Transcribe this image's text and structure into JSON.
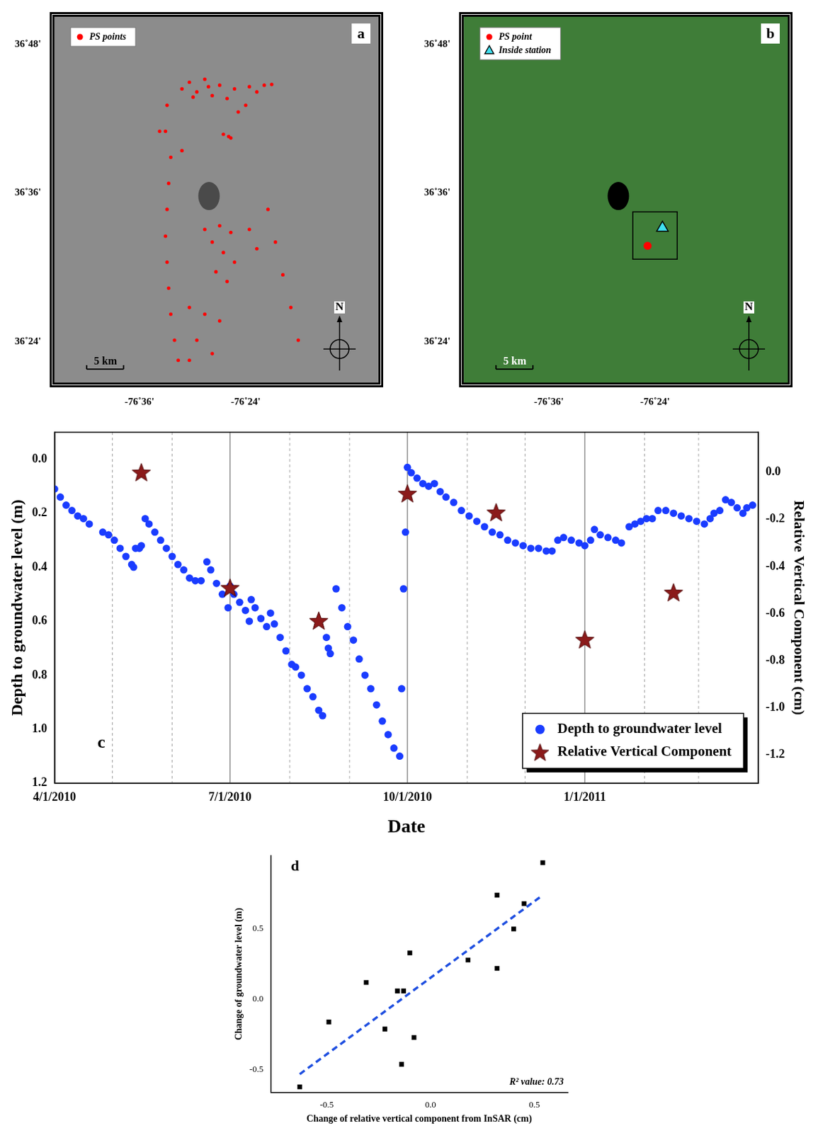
{
  "chart_data": [
    {
      "type": "scatter",
      "panel_label": "a",
      "scale_bar_label": "5 km",
      "north_label": "N",
      "legend": "upper left",
      "grid": false,
      "xlim": [
        -76.76,
        -76.15
      ],
      "ylim": [
        36.345,
        36.837
      ],
      "xticks": [
        {
          "value": -76.6,
          "label": "-76˚36'"
        },
        {
          "value": -76.4,
          "label": "-76˚24'"
        }
      ],
      "yticks": [
        {
          "value": 36.4,
          "label": "36˚24'"
        },
        {
          "value": 36.6,
          "label": "36˚36'"
        },
        {
          "value": 36.8,
          "label": "36˚48'"
        }
      ],
      "series": [
        {
          "name": "PS points",
          "color": "#ff0000",
          "marker": "circle",
          "x": [
            -76.506,
            -76.477,
            -76.449,
            -76.421,
            -76.393,
            -76.365,
            -76.351,
            -76.435,
            -76.463,
            -76.492,
            -76.428,
            -76.442,
            -76.414,
            -76.4,
            -76.52,
            -76.499,
            -76.47,
            -76.379,
            -76.432,
            -76.548,
            -76.562,
            -76.551,
            -76.52,
            -76.541,
            -76.545,
            -76.548,
            -76.551,
            -76.548,
            -76.545,
            -76.541,
            -76.534,
            -76.527,
            -76.477,
            -76.449,
            -76.428,
            -76.463,
            -76.442,
            -76.421,
            -76.456,
            -76.435,
            -76.506,
            -76.477,
            -76.449,
            -76.492,
            -76.463,
            -76.506,
            -76.358,
            -76.344,
            -76.33,
            -76.315,
            -76.301,
            -76.393,
            -76.379
          ],
          "values": [
            36.749,
            36.753,
            36.745,
            36.74,
            36.743,
            36.745,
            36.746,
            36.727,
            36.731,
            36.736,
            36.674,
            36.679,
            36.709,
            36.718,
            36.74,
            36.729,
            36.743,
            36.736,
            36.676,
            36.718,
            36.683,
            36.683,
            36.657,
            36.648,
            36.613,
            36.578,
            36.542,
            36.507,
            36.472,
            36.437,
            36.402,
            36.375,
            36.551,
            36.556,
            36.547,
            36.534,
            36.52,
            36.507,
            36.494,
            36.481,
            36.446,
            36.437,
            36.428,
            36.402,
            36.384,
            36.375,
            36.578,
            36.534,
            36.49,
            36.446,
            36.402,
            36.551,
            36.525
          ]
        }
      ]
    },
    {
      "type": "scatter",
      "panel_label": "b",
      "scale_bar_label": "5 km",
      "north_label": "N",
      "legend": "upper left",
      "grid": false,
      "xlim": [
        -76.76,
        -76.15
      ],
      "ylim": [
        36.345,
        36.837
      ],
      "xticks": [
        {
          "value": -76.6,
          "label": "-76˚36'"
        },
        {
          "value": -76.4,
          "label": "-76˚24'"
        }
      ],
      "yticks": [
        {
          "value": 36.4,
          "label": "36˚24'"
        },
        {
          "value": 36.6,
          "label": "36˚36'"
        },
        {
          "value": 36.8,
          "label": "36˚48'"
        }
      ],
      "series": [
        {
          "name": "PS point",
          "color": "#ff0000",
          "marker": "circle",
          "x": [
            -76.414
          ],
          "values": [
            36.529
          ]
        },
        {
          "name": "Inside station",
          "color": "#40e0f0",
          "marker": "triangle",
          "x": [
            -76.386
          ],
          "values": [
            36.553
          ]
        }
      ]
    },
    {
      "type": "scatter",
      "panel_label": "c",
      "x_label": "Date",
      "y_label": "Depth to groundwater level (m)",
      "y2_label": "Relative Vertical Component (cm)",
      "grid": true,
      "legend": "lower right",
      "xlim": [
        "2010-04-01",
        "2011-04-01"
      ],
      "xticks": [
        {
          "value": "2010-04-01",
          "label": "4/1/2010"
        },
        {
          "value": "2010-07-01",
          "label": "7/1/2010"
        },
        {
          "value": "2010-10-01",
          "label": "10/1/2010"
        },
        {
          "value": "2011-01-01",
          "label": "1/1/2011"
        }
      ],
      "ylim": [
        1.2,
        -0.1
      ],
      "yticks": [
        {
          "value": 0,
          "label": "0.0"
        },
        0.2,
        0.4,
        0.6,
        0.8,
        {
          "value": 1,
          "label": "1.0"
        },
        1.2
      ],
      "y2lim": [
        -1.32,
        0.17
      ],
      "y2ticks": [
        -1.2,
        {
          "value": -1,
          "label": "-1.0"
        },
        -0.8,
        -0.6,
        -0.4,
        -0.2,
        {
          "value": 0,
          "label": "0.0"
        }
      ],
      "series": [
        {
          "name": "Depth to groundwater level",
          "color": "#1a3cff",
          "marker": "circle",
          "x": [
            "2010-04-01",
            "2010-04-04",
            "2010-04-07",
            "2010-04-10",
            "2010-04-13",
            "2010-04-16",
            "2010-04-19",
            "2010-04-22",
            "2010-04-26",
            "2010-04-29",
            "2010-05-02",
            "2010-05-05",
            "2010-05-08",
            "2010-05-11",
            "2010-05-12",
            "2010-05-13",
            "2010-05-15",
            "2010-05-16",
            "2010-05-18",
            "2010-05-20",
            "2010-05-23",
            "2010-05-26",
            "2010-05-29",
            "2010-06-01",
            "2010-06-04",
            "2010-06-07",
            "2010-06-10",
            "2010-06-13",
            "2010-06-16",
            "2010-06-19",
            "2010-06-21",
            "2010-06-24",
            "2010-06-27",
            "2010-06-30",
            "2010-07-01",
            "2010-07-03",
            "2010-07-06",
            "2010-07-09",
            "2010-07-11",
            "2010-07-12",
            "2010-07-14",
            "2010-07-17",
            "2010-07-20",
            "2010-07-22",
            "2010-07-24",
            "2010-07-27",
            "2010-07-30",
            "2010-08-02",
            "2010-08-04",
            "2010-08-07",
            "2010-08-10",
            "2010-08-13",
            "2010-08-16",
            "2010-08-18",
            "2010-08-19",
            "2010-08-20",
            "2010-08-21",
            "2010-08-22",
            "2010-08-23",
            "2010-08-25",
            "2010-08-28",
            "2010-08-31",
            "2010-09-03",
            "2010-09-06",
            "2010-09-09",
            "2010-09-12",
            "2010-09-15",
            "2010-09-18",
            "2010-09-21",
            "2010-09-24",
            "2010-09-27",
            "2010-09-28",
            "2010-09-29",
            "2010-09-30",
            "2010-10-01",
            "2010-10-03",
            "2010-10-06",
            "2010-10-09",
            "2010-10-12",
            "2010-10-15",
            "2010-10-18",
            "2010-10-21",
            "2010-10-25",
            "2010-10-29",
            "2010-11-02",
            "2010-11-06",
            "2010-11-10",
            "2010-11-14",
            "2010-11-18",
            "2010-11-22",
            "2010-11-26",
            "2010-11-30",
            "2010-12-04",
            "2010-12-08",
            "2010-12-12",
            "2010-12-15",
            "2010-12-18",
            "2010-12-21",
            "2010-12-25",
            "2010-12-29",
            "2011-01-01",
            "2011-01-04",
            "2011-01-06",
            "2011-01-09",
            "2011-01-13",
            "2011-01-17",
            "2011-01-20",
            "2011-01-22",
            "2011-01-24",
            "2011-01-27",
            "2011-01-30",
            "2011-02-02",
            "2011-02-05",
            "2011-02-08",
            "2011-02-12",
            "2011-02-16",
            "2011-02-20",
            "2011-02-24",
            "2011-02-28",
            "2011-03-04",
            "2011-03-07",
            "2011-03-09",
            "2011-03-12",
            "2011-03-15",
            "2011-03-18",
            "2011-03-21",
            "2011-03-24",
            "2011-03-26",
            "2011-03-29"
          ],
          "values": [
            0.11,
            0.14,
            0.17,
            0.19,
            0.21,
            0.22,
            0.24,
            null,
            0.27,
            0.28,
            0.3,
            0.33,
            0.36,
            0.39,
            0.4,
            0.33,
            0.33,
            0.32,
            0.22,
            0.24,
            0.27,
            0.3,
            0.33,
            0.36,
            0.39,
            0.41,
            0.44,
            0.45,
            0.45,
            0.38,
            0.41,
            0.46,
            0.5,
            0.55,
            0.47,
            0.5,
            0.53,
            0.56,
            0.6,
            0.52,
            0.55,
            0.59,
            0.62,
            0.57,
            0.61,
            0.66,
            0.71,
            0.76,
            0.77,
            0.8,
            0.85,
            0.88,
            0.93,
            0.95,
            null,
            0.66,
            0.7,
            0.72,
            null,
            0.48,
            0.55,
            0.62,
            0.67,
            0.74,
            0.8,
            0.85,
            0.91,
            0.97,
            1.02,
            1.07,
            1.1,
            0.85,
            0.48,
            0.27,
            0.03,
            0.05,
            0.07,
            0.09,
            0.1,
            0.09,
            0.12,
            0.14,
            0.16,
            0.19,
            0.21,
            0.23,
            0.25,
            0.27,
            0.28,
            0.3,
            0.31,
            0.32,
            0.33,
            0.33,
            0.34,
            0.34,
            0.3,
            0.29,
            0.3,
            0.31,
            0.32,
            0.3,
            0.26,
            0.28,
            0.29,
            0.3,
            0.31,
            null,
            0.25,
            0.24,
            0.23,
            0.22,
            0.22,
            0.19,
            0.19,
            0.2,
            0.21,
            0.22,
            0.23,
            0.24,
            0.22,
            0.2,
            0.19,
            0.15,
            0.16,
            0.18,
            0.2,
            0.18,
            0.17
          ]
        },
        {
          "name": "Relative Vertical Component",
          "color": "#8b1a1a",
          "marker": "star",
          "axis": "y2",
          "x": [
            "2010-05-16",
            "2010-07-01",
            "2010-08-16",
            "2010-10-01",
            "2010-11-16",
            "2011-01-01",
            "2011-02-16"
          ],
          "values": [
            0.0,
            -0.49,
            -0.63,
            -0.09,
            -0.17,
            -0.71,
            -0.51
          ]
        }
      ]
    },
    {
      "type": "scatter",
      "panel_label": "d",
      "x_label": "Change of relative vertical component from InSAR (cm)",
      "y_label": "Change of groundwater level (m)",
      "annotation": "R² value: 0.73",
      "grid": false,
      "xlim": [
        -0.77,
        0.66
      ],
      "ylim": [
        -0.66,
        1.02
      ],
      "xticks": [
        -0.5,
        {
          "value": 0,
          "label": "0.0"
        },
        0.5
      ],
      "yticks": [
        -0.5,
        {
          "value": 0,
          "label": "0.0"
        },
        0.5
      ],
      "color": "#000000",
      "marker": "square",
      "x": [
        -0.63,
        -0.49,
        -0.31,
        -0.22,
        -0.16,
        -0.13,
        -0.14,
        -0.1,
        -0.08,
        0.18,
        0.32,
        0.32,
        0.4,
        0.45,
        0.54
      ],
      "values": [
        -0.62,
        -0.16,
        0.12,
        -0.21,
        0.06,
        0.06,
        -0.46,
        0.33,
        -0.27,
        0.28,
        0.74,
        0.22,
        0.5,
        0.68,
        0.97
      ],
      "fit_line": {
        "x": [
          -0.63,
          0.54
        ],
        "values": [
          -0.53,
          0.74
        ],
        "color": "#1f4fe0",
        "line_style": "dashed"
      }
    }
  ]
}
